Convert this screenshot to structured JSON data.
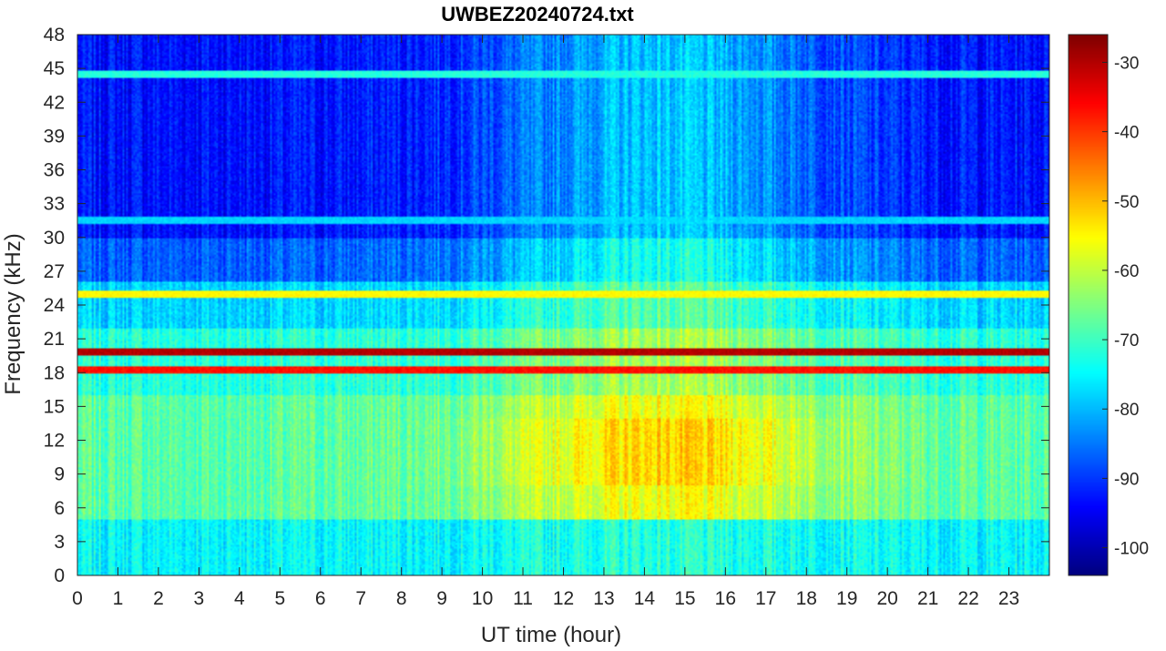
{
  "chart_data": {
    "type": "heatmap",
    "title": "UWBEZ20240724.txt",
    "xlabel": "UT time (hour)",
    "ylabel": "Frequency (kHz)",
    "xlim": [
      0,
      24
    ],
    "ylim": [
      0,
      48
    ],
    "x_ticks": [
      0,
      1,
      2,
      3,
      4,
      5,
      6,
      7,
      8,
      9,
      10,
      11,
      12,
      13,
      14,
      15,
      16,
      17,
      18,
      19,
      20,
      21,
      22,
      23
    ],
    "y_ticks": [
      0,
      3,
      6,
      9,
      12,
      15,
      18,
      21,
      24,
      27,
      30,
      33,
      36,
      39,
      42,
      45,
      48
    ],
    "colormap": "jet",
    "colorbar": {
      "range": [
        -104,
        -26
      ],
      "ticks": [
        -30,
        -40,
        -50,
        -60,
        -70,
        -80,
        -90,
        -100
      ]
    },
    "notable_lines_khz": [
      {
        "freq": 19.8,
        "level": -30
      },
      {
        "freq": 18.2,
        "level": -37
      },
      {
        "freq": 25.0,
        "level": -55
      },
      {
        "freq": 44.5,
        "level": -72
      },
      {
        "freq": 31.5,
        "level": -78
      }
    ],
    "description_regions": [
      {
        "x": [
          9.5,
          20.5
        ],
        "y": [
          6,
          16
        ],
        "level": -55
      },
      {
        "x": [
          0,
          24
        ],
        "y": [
          0,
          4
        ],
        "level": -72
      },
      {
        "x": [
          0,
          24
        ],
        "y": [
          26,
          48
        ],
        "level": -90
      }
    ]
  }
}
